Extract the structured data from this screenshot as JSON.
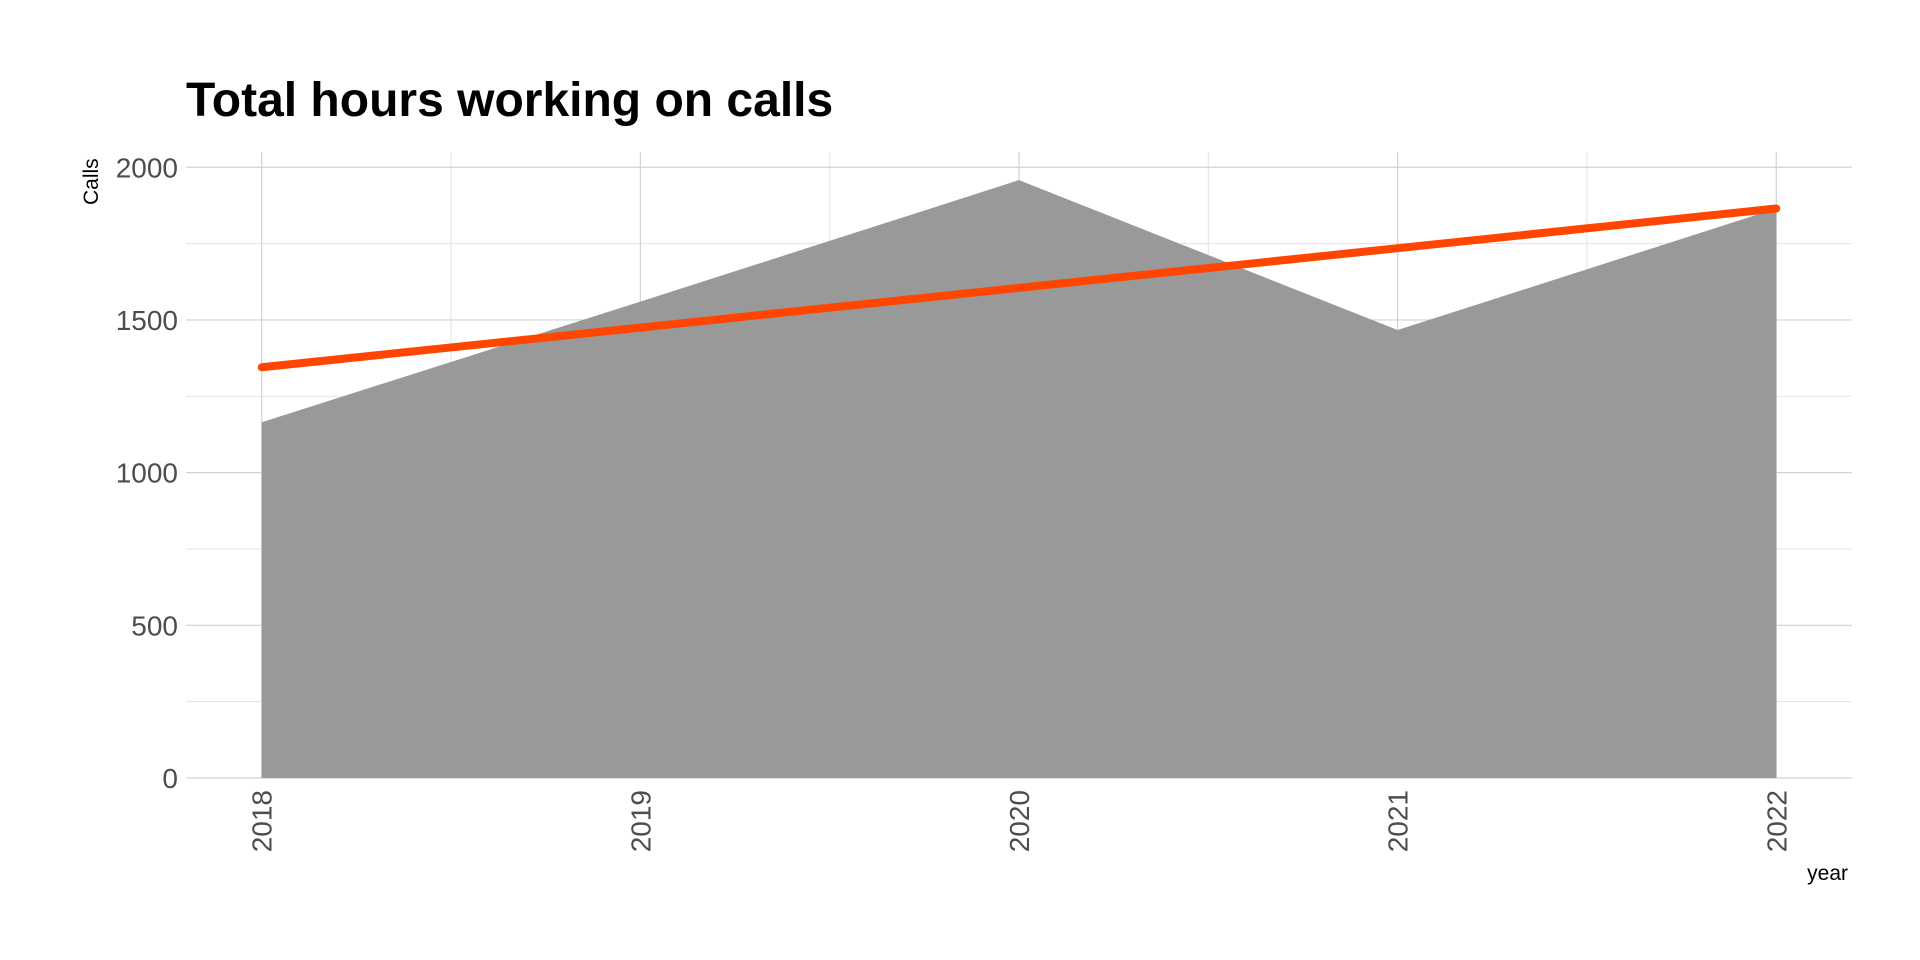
{
  "chart_data": {
    "type": "area",
    "title": "Total hours working on calls",
    "xlabel": "year",
    "ylabel": "Calls",
    "x": [
      2018,
      2019,
      2020,
      2021,
      2022
    ],
    "x_tick_labels": [
      "2018",
      "2019",
      "2020",
      "2021",
      "2022"
    ],
    "y_ticks": [
      0,
      500,
      1000,
      1500,
      2000
    ],
    "y_tick_labels": [
      "0",
      "500",
      "1000",
      "1500",
      "2000"
    ],
    "ylim": [
      0,
      2050
    ],
    "xlim": [
      2017.8,
      2022.2
    ],
    "series": [
      {
        "kind": "area",
        "values": [
          1165,
          1560,
          1958,
          1467,
          1865
        ],
        "color": "#999999"
      },
      {
        "kind": "trend-line",
        "values": [
          1345,
          1475,
          1605,
          1735,
          1865
        ],
        "color": "#ff4500"
      }
    ],
    "grid": true,
    "legend": "none"
  }
}
